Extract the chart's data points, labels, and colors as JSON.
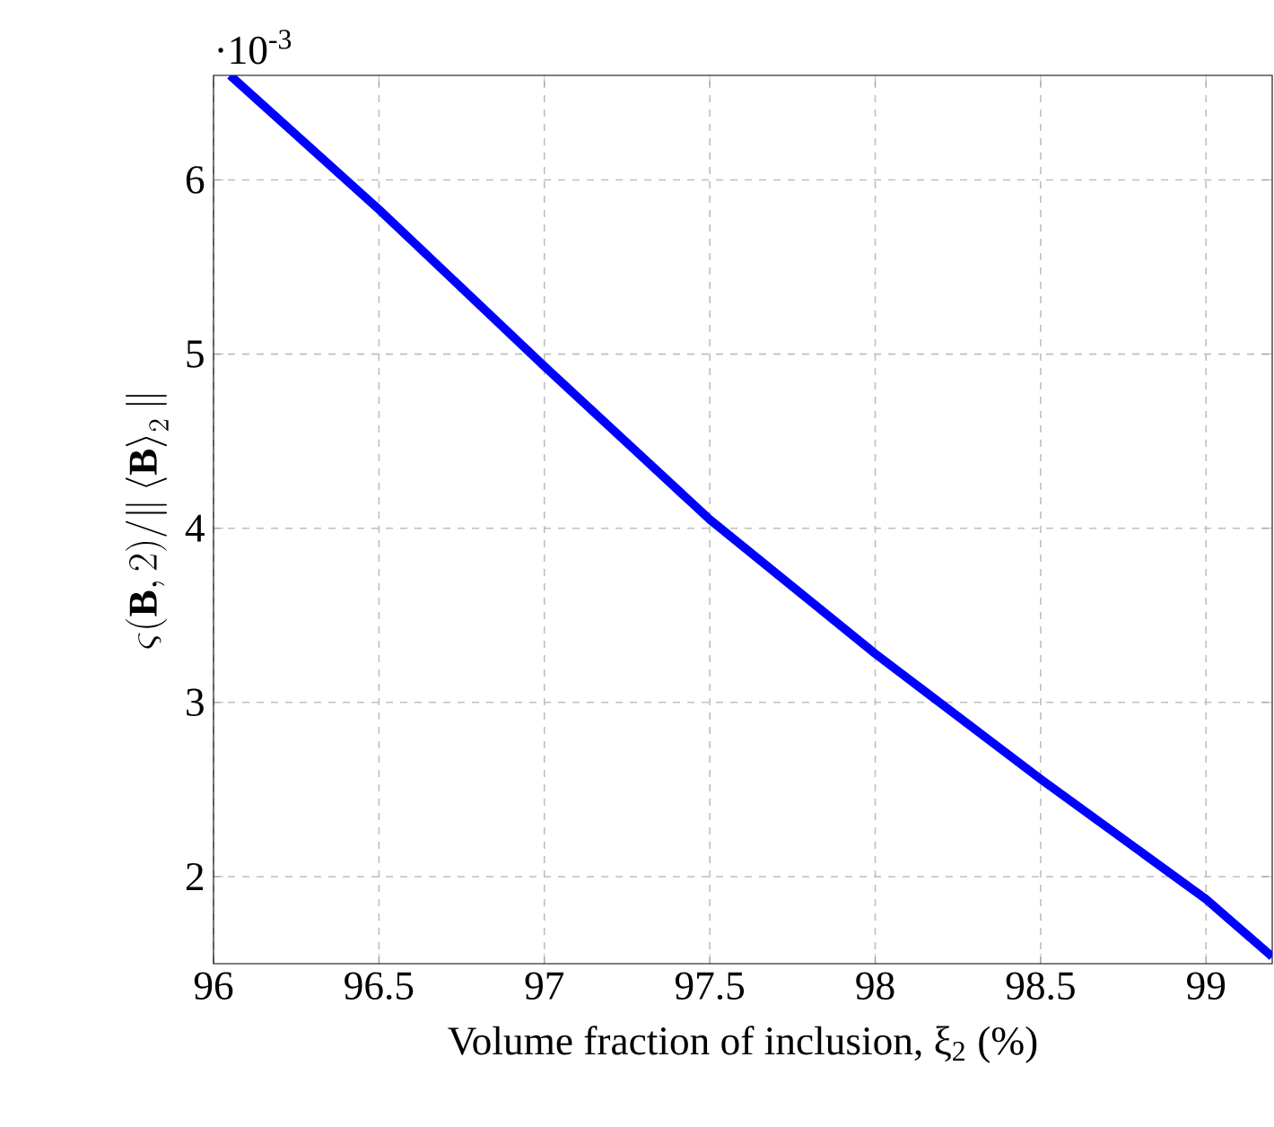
{
  "chart_data": {
    "type": "line",
    "xlabel": "Volume fraction of inclusion, ξ$_{2}$ (%)",
    "ylabel": "\\varsigma(\\mathbf{B},2)/\\|\\left\\langle\\mathbf{B}\\right\\rangle_2\\|",
    "annotations": [
      "·10$^{-3}$"
    ],
    "x": [
      96.05,
      96.5,
      97,
      97.5,
      98,
      98.5,
      99,
      99.2
    ],
    "series": [
      {
        "color": "#0000ff",
        "values": [
          6.6,
          5.83,
          4.93,
          4.05,
          3.28,
          2.56,
          1.87,
          1.54
        ]
      }
    ],
    "xlim": [
      96,
      99.2
    ],
    "ylim": [
      1.5,
      6.6
    ],
    "xticks": [
      96,
      96.5,
      97,
      97.5,
      98,
      98.5,
      99
    ],
    "yticks": [
      2,
      3,
      4,
      5,
      6
    ],
    "grid": true,
    "line_style": "solid",
    "marker": "none"
  }
}
